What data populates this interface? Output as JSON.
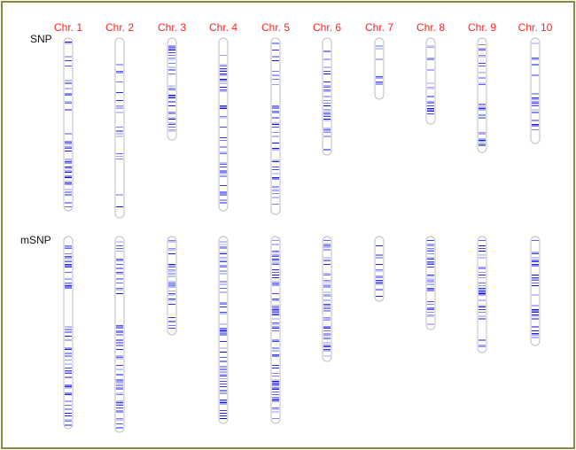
{
  "chromosomes": [
    "Chr. 1",
    "Chr. 2",
    "Chr. 3",
    "Chr. 4",
    "Chr. 5",
    "Chr. 6",
    "Chr. 7",
    "Chr. 8",
    "Chr. 9",
    "Chr. 10"
  ],
  "rows": [
    {
      "label": "SNP",
      "lengths": [
        195,
        203,
        115,
        195,
        199,
        132,
        69,
        97,
        129,
        119
      ],
      "marker_density": [
        0.55,
        0.35,
        0.8,
        0.6,
        0.55,
        0.6,
        0.6,
        0.6,
        0.6,
        0.6
      ],
      "gaps": [
        [
          0.45,
          0.5
        ],
        [
          0.55,
          0.6
        ],
        [],
        [],
        [],
        [
          0.85,
          0.95
        ],
        [
          0.5,
          0.6
        ],
        [
          0.12,
          0.2
        ],
        [
          0.7,
          0.8
        ],
        [
          0.4,
          0.5
        ]
      ]
    },
    {
      "label": "mSNP",
      "lengths": [
        217,
        221,
        111,
        211,
        211,
        141,
        73,
        105,
        131,
        123
      ],
      "marker_density": [
        0.8,
        0.7,
        0.9,
        0.85,
        0.85,
        0.75,
        0.8,
        0.75,
        0.75,
        0.8
      ],
      "gaps": [
        [
          0.3,
          0.46
        ],
        [
          0.3,
          0.45
        ],
        [
          0.72,
          0.78
        ],
        [],
        [],
        [],
        [],
        [],
        [],
        []
      ]
    }
  ],
  "colors": {
    "marker": "#0000ff",
    "label": "#ff2020",
    "outline": "#c8c8c8",
    "border": "#8b8a3a"
  }
}
